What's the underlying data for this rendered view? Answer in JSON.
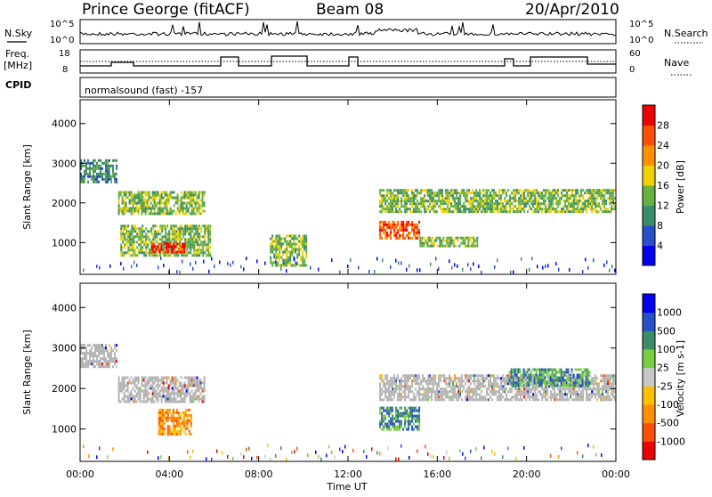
{
  "header": {
    "station": "Prince George (fitACF)",
    "beam": "Beam 08",
    "date": "20/Apr/2010"
  },
  "panels": {
    "nsky_label": "N.Sky",
    "nsky_ticks": [
      "10^5",
      "10^0"
    ],
    "nsearch_label": "N.Search",
    "nsearch_ticks": [
      "10^5",
      "10^0"
    ],
    "freq_label_1": "Freq.",
    "freq_label_2": "[MHz]",
    "freq_ticks": [
      "18",
      "8"
    ],
    "nave_label": "Nave",
    "nave_ticks": [
      "60",
      "0"
    ],
    "cpid_label": "CPID",
    "cpid_text": "normalsound (fast) -157"
  },
  "colors": {
    "power_scale": [
      "#0000ee",
      "#2850c8",
      "#3c8c6a",
      "#66b040",
      "#f0d000",
      "#ff9000",
      "#ff5000",
      "#ee0000"
    ],
    "velocity_scale": [
      "#ee0000",
      "#ff5000",
      "#ff9000",
      "#ffc000",
      "#c8c8c8",
      "#78d040",
      "#3c8c6a",
      "#2850c8",
      "#0000ee"
    ],
    "ground_scatter": "#b4b4b4"
  },
  "chart_data": [
    {
      "type": "heatmap",
      "name": "power",
      "x": {
        "label": "Time UT",
        "range_hours": [
          0,
          24
        ],
        "ticks": [
          "00:00",
          "04:00",
          "08:00",
          "12:00",
          "16:00",
          "20:00",
          "00:00"
        ]
      },
      "y": {
        "label": "Slant Range [km]",
        "range_km": [
          200,
          4600
        ],
        "ticks": [
          "1000",
          "2000",
          "3000",
          "4000"
        ]
      },
      "colorbar": {
        "label": "Power [dB]",
        "ticks": [
          "28",
          "24",
          "20",
          "16",
          "12",
          "8",
          "4"
        ],
        "range": [
          0,
          32
        ]
      },
      "regions": [
        {
          "t0": 0.0,
          "t1": 1.6,
          "r0": 2550,
          "r1": 3100,
          "level": 2
        },
        {
          "t0": 1.7,
          "t1": 5.6,
          "r0": 1700,
          "r1": 2300,
          "level": 3
        },
        {
          "t0": 1.8,
          "t1": 5.8,
          "r0": 650,
          "r1": 1450,
          "level": 3
        },
        {
          "t0": 3.2,
          "t1": 4.7,
          "r0": 780,
          "r1": 1000,
          "level": 7
        },
        {
          "t0": 8.5,
          "t1": 10.1,
          "r0": 420,
          "r1": 1200,
          "level": 3
        },
        {
          "t0": 13.4,
          "t1": 24.0,
          "r0": 1750,
          "r1": 2350,
          "level": 3
        },
        {
          "t0": 13.4,
          "t1": 15.2,
          "r0": 1100,
          "r1": 1550,
          "level": 6
        },
        {
          "t0": 15.2,
          "t1": 17.8,
          "r0": 900,
          "r1": 1150,
          "level": 3
        }
      ]
    },
    {
      "type": "heatmap",
      "name": "velocity",
      "x": {
        "label": "Time UT",
        "range_hours": [
          0,
          24
        ],
        "ticks": [
          "00:00",
          "04:00",
          "08:00",
          "12:00",
          "16:00",
          "20:00",
          "00:00"
        ]
      },
      "y": {
        "label": "Slant Range [km]",
        "range_km": [
          200,
          4600
        ],
        "ticks": [
          "1000",
          "2000",
          "3000",
          "4000"
        ]
      },
      "colorbar": {
        "label": "Velocity [m s-1]",
        "ticks": [
          "1000",
          "500",
          "100",
          "25",
          "-25",
          "-100",
          "-500",
          "-1000"
        ]
      },
      "regions": [
        {
          "t0": 0.0,
          "t1": 1.6,
          "r0": 2550,
          "r1": 3100,
          "kind": "ground"
        },
        {
          "t0": 1.7,
          "t1": 5.6,
          "r0": 1700,
          "r1": 2300,
          "kind": "ground"
        },
        {
          "t0": 3.5,
          "t1": 5.0,
          "r0": 900,
          "r1": 1500,
          "kind": "neg"
        },
        {
          "t0": 13.4,
          "t1": 24.0,
          "r0": 1750,
          "r1": 2350,
          "kind": "ground"
        },
        {
          "t0": 13.4,
          "t1": 15.2,
          "r0": 1000,
          "r1": 1550,
          "kind": "pos"
        },
        {
          "t0": 19.2,
          "t1": 22.8,
          "r0": 2100,
          "r1": 2500,
          "kind": "pos"
        }
      ]
    }
  ]
}
